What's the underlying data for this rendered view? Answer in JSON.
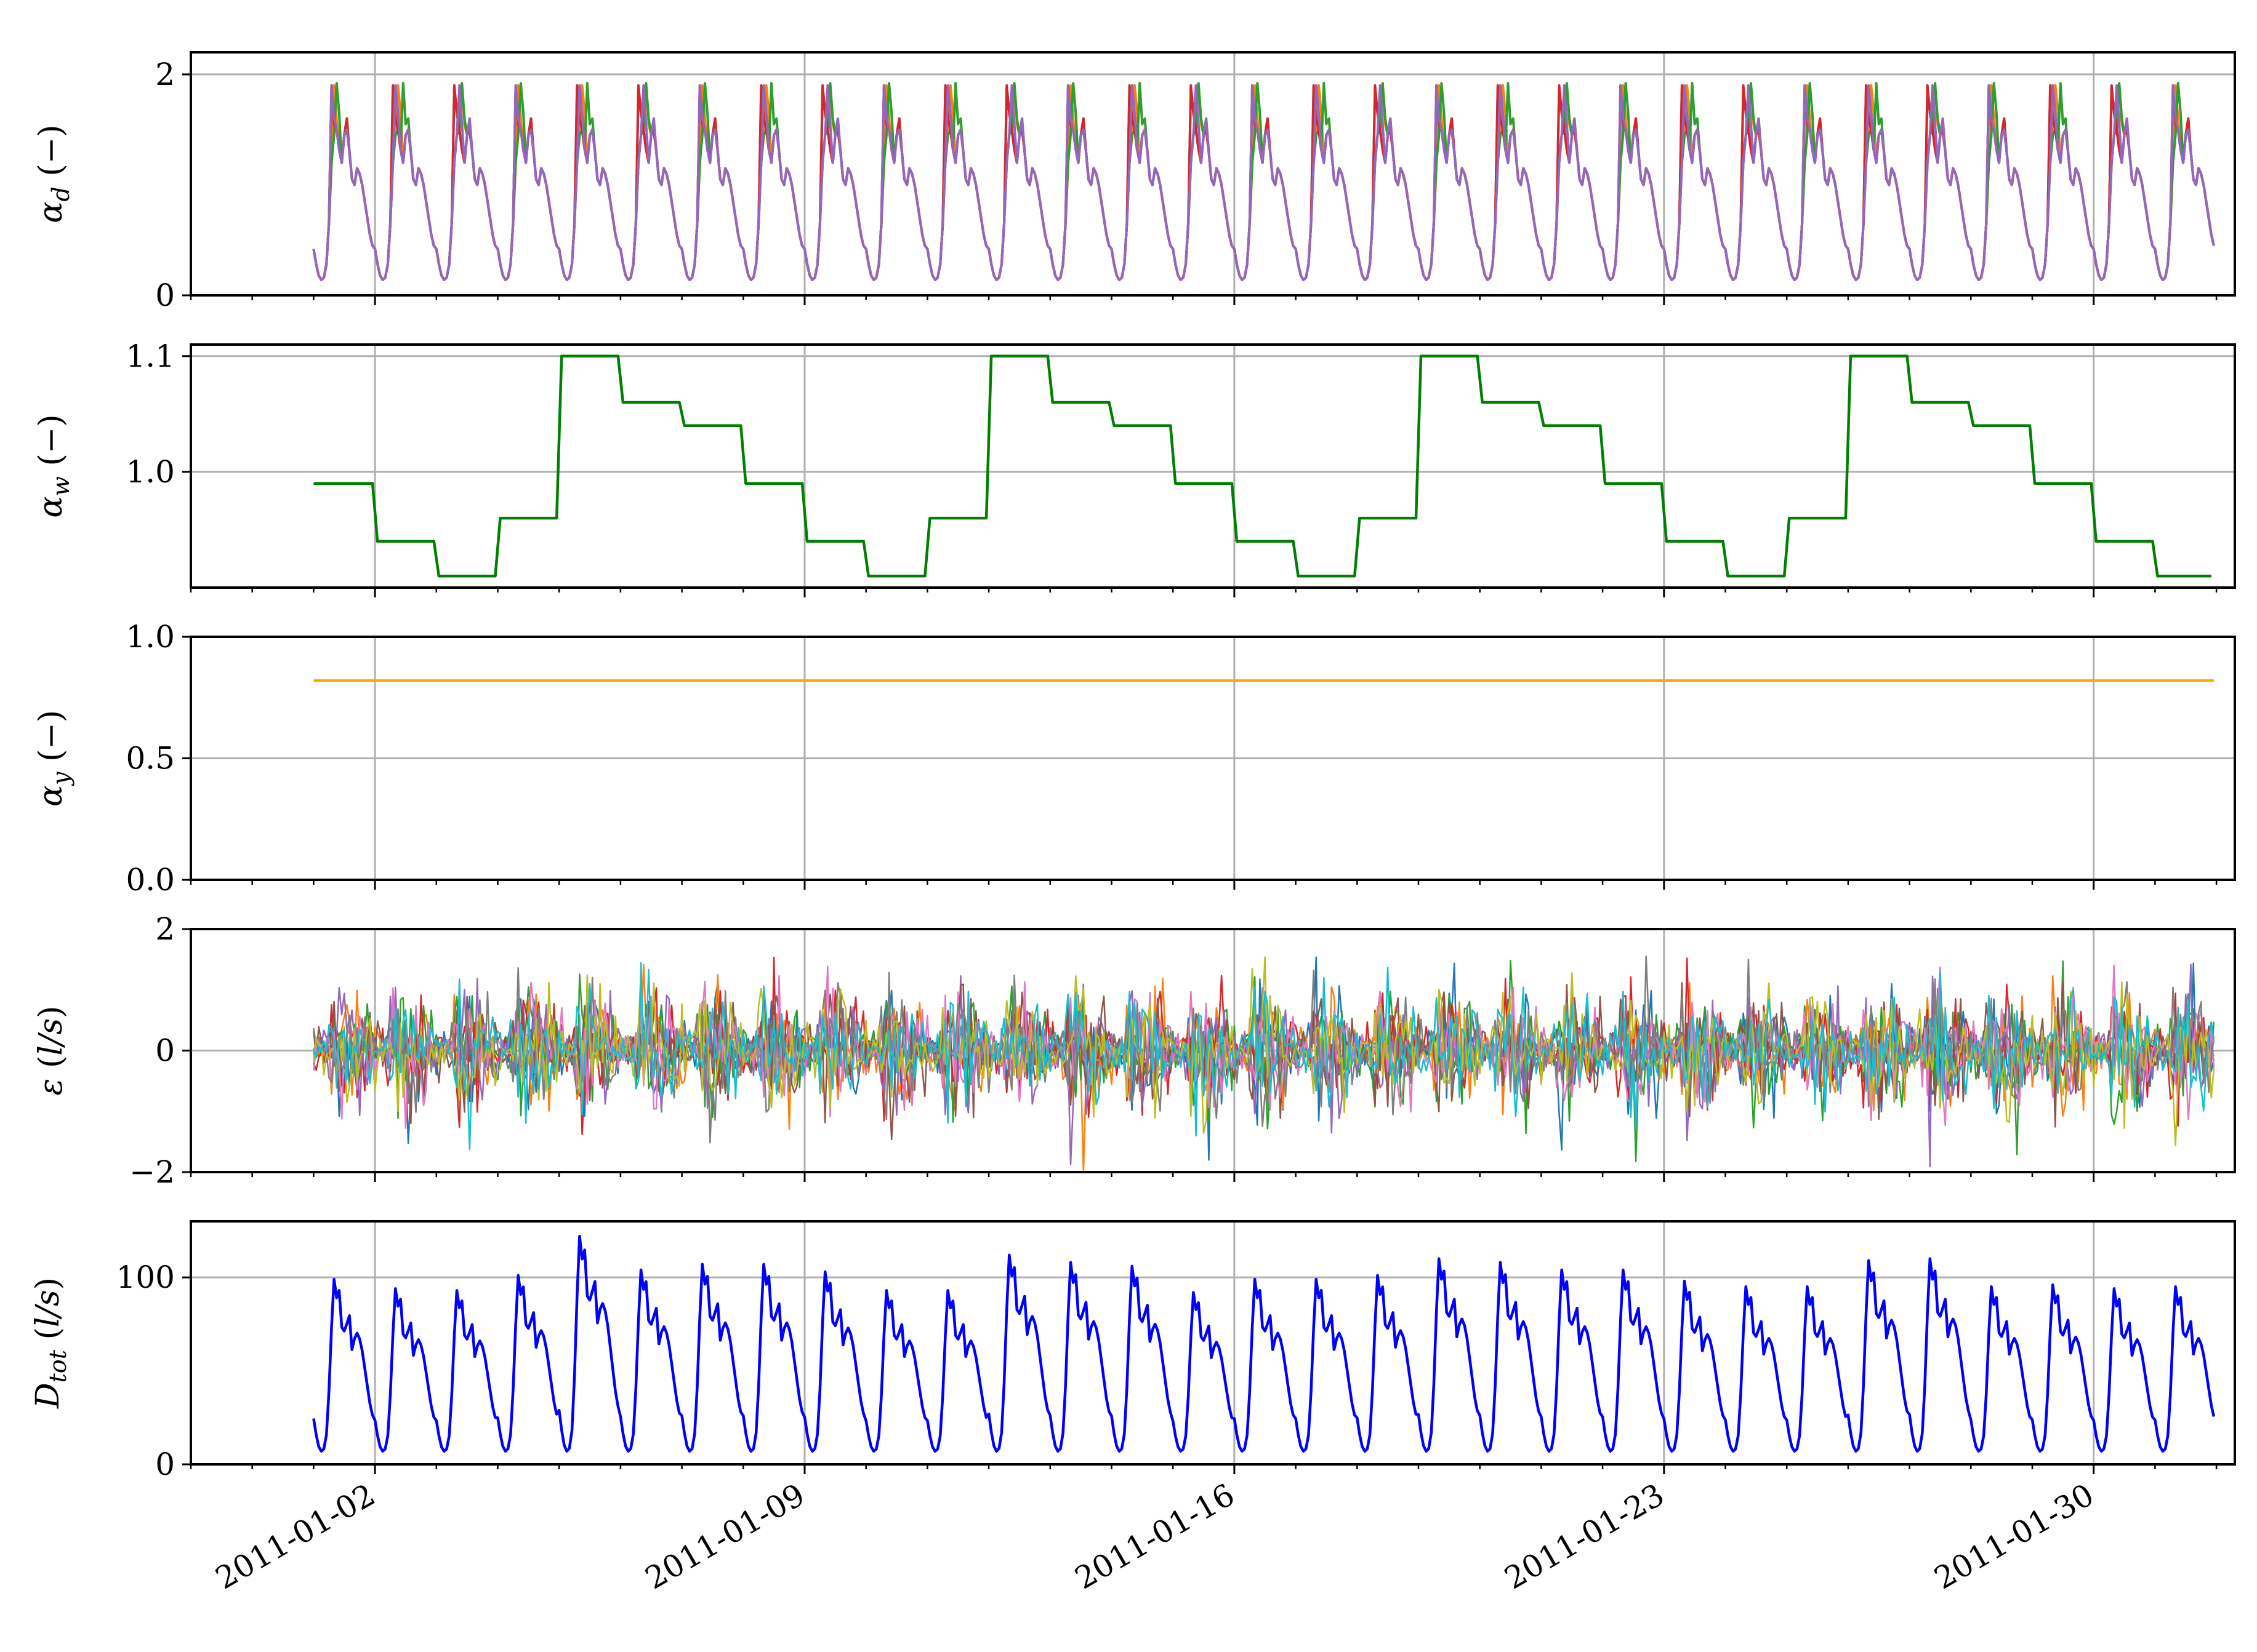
{
  "chart_data": [
    {
      "type": "line",
      "panel": "alpha_d",
      "ylabel": "α_d (−)",
      "ylim": [
        0,
        2.2
      ],
      "yticks": [
        0,
        2
      ],
      "x_start": "2011-01-01T00:00",
      "x_end": "2011-01-31T23:00",
      "x_step_hours": 1,
      "day_profile_hours": [
        0,
        1,
        2,
        3,
        4,
        5,
        6,
        7,
        8,
        9,
        10,
        11,
        12,
        13,
        14,
        15,
        16,
        17,
        18,
        19,
        20,
        21,
        22,
        23
      ],
      "day_profile_values": [
        0.42,
        0.28,
        0.18,
        0.14,
        0.16,
        0.28,
        0.65,
        1.2,
        1.45,
        1.5,
        1.32,
        1.2,
        1.45,
        1.5,
        1.3,
        1.05,
        1.0,
        1.15,
        1.1,
        1.0,
        0.85,
        0.7,
        0.55,
        0.45
      ],
      "series": [
        {
          "color": "#1f77b4",
          "peak_hour": 8,
          "peak_value": 1.88
        },
        {
          "color": "#ff7f0e",
          "peak_hour": 9,
          "peak_value": 1.9
        },
        {
          "color": "#2ca02c",
          "peak_hour": 10,
          "peak_value": 1.92
        },
        {
          "color": "#d62728",
          "peak_hour": 8,
          "peak_value": 1.9
        },
        {
          "color": "#9467bd",
          "peak_hour": 8,
          "peak_value": 1.9
        }
      ]
    },
    {
      "type": "line",
      "panel": "alpha_w",
      "ylabel": "α_w (−)",
      "ylim": [
        0.9,
        1.11
      ],
      "yticks": [
        1.0,
        1.1
      ],
      "step_every_hours": 24,
      "weekly_values": [
        0.99,
        0.94,
        0.91,
        0.96,
        1.1,
        1.06,
        1.04,
        0.99,
        0.94,
        0.91,
        0.96,
        1.1,
        1.06,
        1.04,
        0.99,
        0.94,
        0.91,
        0.96,
        1.1,
        1.06,
        1.04,
        0.99,
        0.94,
        0.91,
        0.96,
        1.1,
        1.06,
        1.04,
        0.99,
        0.94,
        0.91
      ],
      "series": [
        {
          "color": "#008000"
        }
      ]
    },
    {
      "type": "line",
      "panel": "alpha_y",
      "ylabel": "α_y (−)",
      "ylim": [
        0.0,
        1.0
      ],
      "yticks": [
        0.0,
        0.5,
        1.0
      ],
      "series": [
        {
          "color": "#ffa500",
          "value": 0.82
        }
      ]
    },
    {
      "type": "line",
      "panel": "epsilon",
      "ylabel": "ε (l/s)",
      "ylim": [
        -2,
        2
      ],
      "yticks": [
        -2,
        0,
        2
      ],
      "n_series": 10,
      "noise_amplitude": 2.0,
      "series": [
        {
          "color": "#1f77b4"
        },
        {
          "color": "#ff7f0e"
        },
        {
          "color": "#2ca02c"
        },
        {
          "color": "#d62728"
        },
        {
          "color": "#9467bd"
        },
        {
          "color": "#8c564b"
        },
        {
          "color": "#e377c2"
        },
        {
          "color": "#7f7f7f"
        },
        {
          "color": "#bcbd22"
        },
        {
          "color": "#17becf"
        }
      ]
    },
    {
      "type": "line",
      "panel": "D_tot",
      "ylabel": "D_tot (l/s)",
      "ylim": [
        0,
        130
      ],
      "yticks": [
        0,
        100
      ],
      "day_peaks": [
        99,
        94,
        93,
        101,
        122,
        104,
        107,
        107,
        103,
        93,
        93,
        112,
        108,
        106,
        92,
        99,
        99,
        101,
        110,
        108,
        104,
        104,
        98,
        95,
        95,
        109,
        110,
        95,
        96,
        94,
        95
      ],
      "series": [
        {
          "color": "#0000ff"
        }
      ]
    }
  ],
  "x_axis": {
    "type": "date",
    "tick_labels": [
      "2011-01-02",
      "2011-01-09",
      "2011-01-16",
      "2011-01-23",
      "2011-01-30"
    ],
    "major_ticks": [
      "2011-01-02",
      "2011-01-09",
      "2011-01-16",
      "2011-01-23",
      "2011-01-30"
    ],
    "minor_tick_every_days": 1,
    "grid": true
  }
}
